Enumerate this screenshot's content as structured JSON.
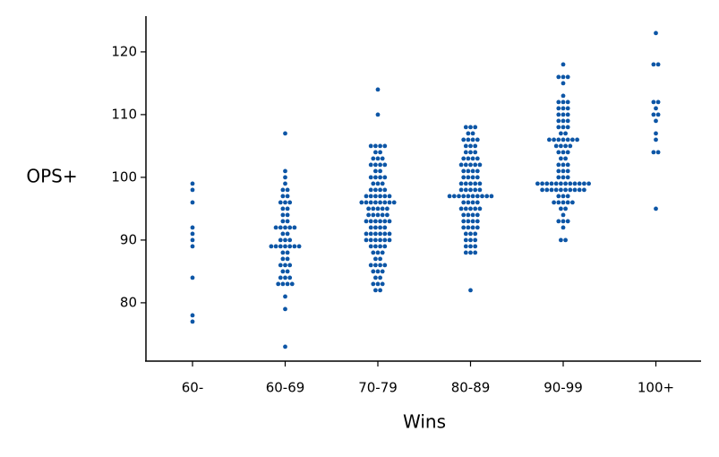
{
  "chart_data": {
    "type": "swarm",
    "x_label": "Wins",
    "y_label": "OPS+",
    "categories": [
      "60-",
      "60-69",
      "70-79",
      "80-89",
      "90-99",
      "100+"
    ],
    "color": "#0d56a6",
    "values": [
      [
        99,
        98,
        96,
        92,
        91,
        90,
        89,
        84,
        78,
        77
      ],
      [
        107,
        101,
        100,
        99,
        98,
        98,
        97,
        97,
        96,
        96,
        96,
        95,
        95,
        94,
        94,
        93,
        93,
        92,
        92,
        92,
        92,
        92,
        91,
        91,
        90,
        90,
        90,
        89,
        89,
        89,
        89,
        89,
        89,
        89,
        88,
        88,
        87,
        87,
        86,
        86,
        86,
        85,
        85,
        84,
        84,
        84,
        83,
        83,
        83,
        83,
        81,
        79,
        73
      ],
      [
        114,
        110,
        105,
        105,
        105,
        105,
        104,
        104,
        103,
        103,
        103,
        102,
        102,
        102,
        102,
        101,
        101,
        100,
        100,
        100,
        100,
        99,
        99,
        99,
        98,
        98,
        98,
        98,
        97,
        97,
        97,
        97,
        97,
        97,
        96,
        96,
        96,
        96,
        96,
        96,
        96,
        96,
        95,
        95,
        95,
        95,
        95,
        94,
        94,
        94,
        94,
        94,
        93,
        93,
        93,
        93,
        93,
        93,
        92,
        92,
        92,
        92,
        91,
        91,
        91,
        91,
        91,
        91,
        90,
        90,
        90,
        90,
        90,
        90,
        89,
        89,
        89,
        89,
        88,
        88,
        88,
        87,
        87,
        86,
        86,
        86,
        86,
        85,
        85,
        85,
        84,
        84,
        83,
        83,
        83,
        82,
        82
      ],
      [
        108,
        108,
        108,
        107,
        107,
        106,
        106,
        106,
        106,
        105,
        105,
        105,
        104,
        104,
        104,
        103,
        103,
        103,
        103,
        102,
        102,
        102,
        102,
        102,
        101,
        101,
        101,
        101,
        100,
        100,
        100,
        100,
        99,
        99,
        99,
        99,
        99,
        98,
        98,
        98,
        98,
        98,
        97,
        97,
        97,
        97,
        97,
        97,
        97,
        97,
        97,
        97,
        96,
        96,
        96,
        96,
        95,
        95,
        95,
        95,
        95,
        94,
        94,
        94,
        94,
        93,
        93,
        93,
        93,
        92,
        92,
        92,
        92,
        91,
        91,
        91,
        90,
        90,
        90,
        89,
        89,
        89,
        88,
        88,
        88,
        82
      ],
      [
        118,
        116,
        116,
        116,
        115,
        113,
        112,
        112,
        112,
        111,
        111,
        111,
        110,
        110,
        110,
        109,
        109,
        109,
        108,
        108,
        108,
        107,
        107,
        106,
        106,
        106,
        106,
        106,
        106,
        106,
        105,
        105,
        105,
        105,
        104,
        104,
        104,
        103,
        103,
        102,
        102,
        102,
        101,
        101,
        101,
        100,
        100,
        100,
        99,
        99,
        99,
        99,
        99,
        99,
        99,
        99,
        99,
        99,
        99,
        99,
        98,
        98,
        98,
        98,
        98,
        98,
        98,
        98,
        98,
        98,
        97,
        97,
        97,
        96,
        96,
        96,
        96,
        96,
        95,
        95,
        94,
        93,
        93,
        93,
        92,
        90,
        90
      ],
      [
        123,
        118,
        118,
        112,
        112,
        111,
        110,
        110,
        109,
        107,
        106,
        104,
        104,
        95
      ]
    ],
    "ylim": [
      70.7,
      125.7
    ],
    "yticks": [
      80,
      90,
      100,
      110,
      120
    ]
  }
}
